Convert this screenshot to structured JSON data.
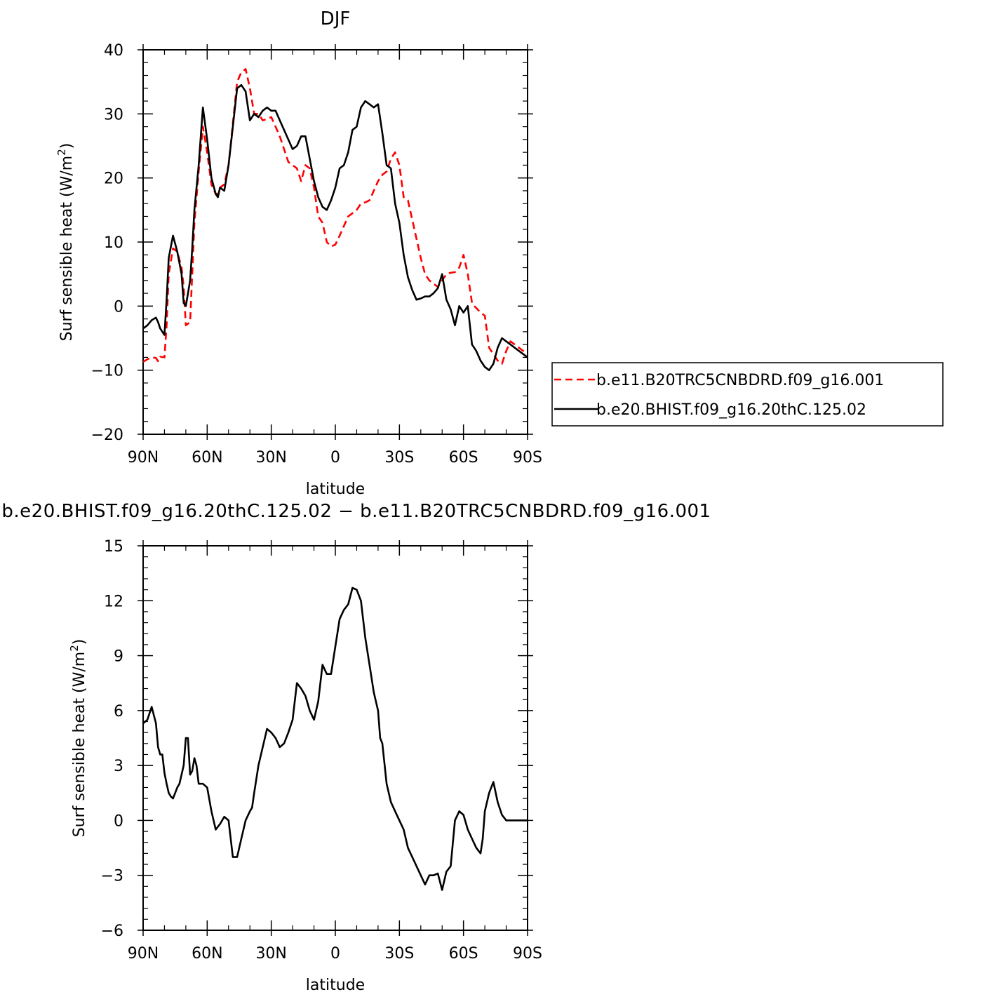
{
  "chart_data": [
    {
      "type": "line",
      "title": "DJF",
      "xlabel": "latitude",
      "ylabel": "Surf sensible heat (W/m²)",
      "ylabel_parts": {
        "main": "Surf sensible heat (W/m",
        "sup": "2",
        "close": ")"
      },
      "xlim": [
        90,
        -90
      ],
      "ylim": [
        -20,
        40
      ],
      "xticks": [
        90,
        60,
        30,
        0,
        -30,
        -60,
        -90
      ],
      "xtick_labels": [
        "90N",
        "60N",
        "30N",
        "0",
        "30S",
        "60S",
        "90S"
      ],
      "yticks": [
        -20,
        -10,
        0,
        10,
        20,
        30,
        40
      ],
      "ytick_labels": [
        "−20",
        "−10",
        "0",
        "10",
        "20",
        "30",
        "40"
      ],
      "legend": {
        "placement": "right"
      },
      "series": [
        {
          "name": "b.e11.B20TRC5CNBDRD.f09_g16.001",
          "color": "#ff0000",
          "dash": "dashed",
          "x": [
            90,
            88,
            86,
            84,
            83,
            82,
            80,
            79,
            78,
            76,
            74,
            72,
            71,
            70,
            68,
            67,
            66,
            64,
            62,
            60,
            58,
            56,
            55,
            54,
            52,
            50,
            48,
            46,
            44,
            42,
            40,
            38,
            36,
            34,
            32,
            30,
            28,
            26,
            24,
            22,
            20,
            18,
            16,
            14,
            12,
            10,
            8,
            6,
            4,
            2,
            0,
            -2,
            -4,
            -6,
            -8,
            -10,
            -12,
            -14,
            -16,
            -18,
            -20,
            -22,
            -24,
            -26,
            -28,
            -30,
            -32,
            -34,
            -36,
            -38,
            -40,
            -42,
            -44,
            -46,
            -48,
            -50,
            -52,
            -54,
            -56,
            -58,
            -60,
            -62,
            -64,
            -65,
            -66,
            -68,
            -70,
            -72,
            -74,
            -76,
            -78,
            -80,
            -82,
            -84,
            -86,
            -88,
            -90
          ],
          "y": [
            -8.7,
            -8.3,
            -8.0,
            -8.1,
            -8.6,
            -7.9,
            -8.0,
            -3.0,
            5.0,
            9.0,
            8.5,
            6.0,
            3.0,
            -3.0,
            -2.5,
            5.0,
            13.0,
            21.0,
            28.0,
            24.0,
            19.0,
            17.5,
            17.5,
            18.5,
            19.0,
            22.0,
            28.5,
            35.0,
            36.5,
            37.0,
            34.0,
            30.0,
            30.0,
            29.0,
            29.2,
            29.5,
            28.0,
            26.5,
            24.5,
            22.5,
            22.0,
            21.5,
            19.5,
            22.0,
            21.5,
            18.5,
            14.0,
            13.0,
            10.0,
            9.3,
            9.6,
            11.0,
            12.5,
            14.0,
            14.5,
            15.0,
            16.0,
            16.2,
            16.5,
            18.0,
            19.5,
            20.5,
            21.0,
            23.0,
            24.0,
            22.0,
            17.0,
            16.5,
            13.5,
            10.5,
            7.5,
            5.0,
            4.0,
            3.5,
            3.0,
            4.0,
            5.0,
            5.2,
            5.3,
            6.0,
            8.0,
            5.0,
            0.5,
            0.0,
            -0.3,
            -1.0,
            -1.5,
            -6.5,
            -7.5,
            -8.5,
            -9.0,
            -7.0,
            -5.5,
            -6.0,
            -6.5,
            -7.0,
            -7.5
          ],
          "y_trimmed": true
        },
        {
          "name": "b.e20.BHIST.f09_g16.20thC.125.02",
          "color": "#000000",
          "dash": "solid",
          "x": [
            90,
            88,
            86,
            84,
            83,
            82,
            80,
            79,
            78,
            76,
            74,
            72,
            71,
            70,
            68,
            67,
            66,
            64,
            62,
            60,
            58,
            56,
            55,
            54,
            52,
            50,
            48,
            46,
            44,
            42,
            40,
            38,
            36,
            34,
            32,
            30,
            28,
            26,
            24,
            22,
            20,
            18,
            16,
            14,
            12,
            10,
            8,
            6,
            4,
            2,
            0,
            -2,
            -4,
            -6,
            -8,
            -10,
            -12,
            -14,
            -16,
            -18,
            -20,
            -22,
            -24,
            -26,
            -28,
            -30,
            -32,
            -34,
            -36,
            -38,
            -40,
            -42,
            -44,
            -46,
            -48,
            -50,
            -52,
            -54,
            -56,
            -58,
            -60,
            -62,
            -64,
            -65,
            -66,
            -68,
            -70,
            -72,
            -74,
            -76,
            -78,
            -80,
            -82,
            -84,
            -86,
            -88,
            -90
          ],
          "y": [
            -3.5,
            -3.0,
            -2.2,
            -1.8,
            -2.5,
            -3.5,
            -4.5,
            1.0,
            7.5,
            11.0,
            8.5,
            5.0,
            0.5,
            0.0,
            4.0,
            9.0,
            15.0,
            22.0,
            31.0,
            26.0,
            20.0,
            17.5,
            17.0,
            18.5,
            18.0,
            22.0,
            28.0,
            34.0,
            34.5,
            33.5,
            29.0,
            30.0,
            29.5,
            30.5,
            31.0,
            30.5,
            30.5,
            29.0,
            27.5,
            26.0,
            24.5,
            25.0,
            26.5,
            26.5,
            23.0,
            19.5,
            17.0,
            15.5,
            15.0,
            16.5,
            18.5,
            21.5,
            22.0,
            24.0,
            27.5,
            28.0,
            31.0,
            32.0,
            31.5,
            31.0,
            31.5,
            27.0,
            22.0,
            21.5,
            16.0,
            13.0,
            8.0,
            4.5,
            2.5,
            1.0,
            1.2,
            1.5,
            1.5,
            2.0,
            2.8,
            5.0,
            1.0,
            -0.5,
            -3.0,
            0.0,
            -1.0,
            0.0,
            -6.0,
            -6.5,
            -7.0,
            -8.5,
            -9.5,
            -10.0,
            -9.0,
            -6.5,
            -5.0,
            -5.5,
            -6.0,
            -6.5,
            -7.0,
            -7.5,
            -8.0
          ],
          "y_trimmed": true
        }
      ]
    },
    {
      "type": "line",
      "title": "b.e20.BHIST.f09_g16.20thC.125.02 − b.e11.B20TRC5CNBDRD.f09_g16.001",
      "xlabel": "latitude",
      "ylabel": "Surf sensible heat (W/m²)",
      "ylabel_parts": {
        "main": "Surf sensible heat (W/m",
        "sup": "2",
        "close": ")"
      },
      "xlim": [
        90,
        -90
      ],
      "ylim": [
        -6,
        15
      ],
      "xticks": [
        90,
        60,
        30,
        0,
        -30,
        -60,
        -90
      ],
      "xtick_labels": [
        "90N",
        "60N",
        "30N",
        "0",
        "30S",
        "60S",
        "90S"
      ],
      "yticks": [
        -6,
        -3,
        0,
        3,
        6,
        9,
        12,
        15
      ],
      "ytick_labels": [
        "−6",
        "−3",
        "0",
        "3",
        "6",
        "9",
        "12",
        "15"
      ],
      "series": [
        {
          "color": "#000000",
          "dash": "solid",
          "x": [
            90,
            88,
            86,
            84,
            83,
            82,
            81,
            80,
            79,
            78,
            77,
            76,
            75,
            74,
            73,
            72,
            71,
            70,
            69,
            68,
            67,
            66,
            65,
            64,
            62,
            60,
            58,
            56,
            54,
            52,
            50,
            48,
            46,
            44,
            42,
            40,
            39,
            38,
            36,
            34,
            32,
            30,
            28,
            26,
            24,
            22,
            20,
            18,
            16,
            14,
            12,
            10,
            8,
            6,
            4,
            2,
            0,
            -2,
            -4,
            -6,
            -8,
            -10,
            -12,
            -14,
            -16,
            -18,
            -20,
            -21,
            -22,
            -24,
            -26,
            -28,
            -30,
            -32,
            -34,
            -36,
            -38,
            -40,
            -42,
            -44,
            -46,
            -48,
            -50,
            -52,
            -54,
            -56,
            -58,
            -60,
            -62,
            -64,
            -66,
            -68,
            -69,
            -70,
            -72,
            -74,
            -76,
            -78,
            -80,
            -82,
            -84,
            -86,
            -88,
            -89,
            -90
          ],
          "y": [
            5.3,
            5.5,
            6.2,
            5.3,
            4.0,
            3.6,
            3.6,
            2.6,
            2.0,
            1.5,
            1.3,
            1.2,
            1.5,
            1.8,
            2.0,
            2.5,
            3.0,
            4.5,
            4.5,
            2.5,
            2.7,
            3.4,
            3.0,
            2.0,
            2.0,
            1.8,
            0.5,
            -0.5,
            -0.2,
            0.2,
            0.0,
            -2.0,
            -2.0,
            -1.0,
            0.0,
            0.5,
            0.7,
            1.5,
            3.0,
            4.0,
            5.0,
            4.8,
            4.5,
            4.0,
            4.2,
            4.8,
            5.5,
            7.5,
            7.2,
            6.8,
            6.0,
            5.5,
            6.5,
            8.5,
            8.0,
            8.0,
            9.5,
            11.0,
            11.5,
            11.8,
            12.7,
            12.6,
            12.0,
            10.0,
            8.5,
            7.0,
            6.0,
            4.5,
            4.2,
            2.0,
            1.0,
            0.5,
            0.0,
            -0.5,
            -1.5,
            -2.0,
            -2.5,
            -3.0,
            -3.5,
            -3.0,
            -3.0,
            -2.9,
            -3.8,
            -2.8,
            -2.5,
            0.0,
            0.5,
            0.3,
            -0.5,
            -1.0,
            -1.5,
            -1.8,
            -1.0,
            0.5,
            1.5,
            2.1,
            1.0,
            0.3,
            0.0,
            0.0,
            0.0,
            0.0,
            0.0,
            0.0,
            0.0
          ],
          "y_trimmed": true
        }
      ]
    }
  ]
}
